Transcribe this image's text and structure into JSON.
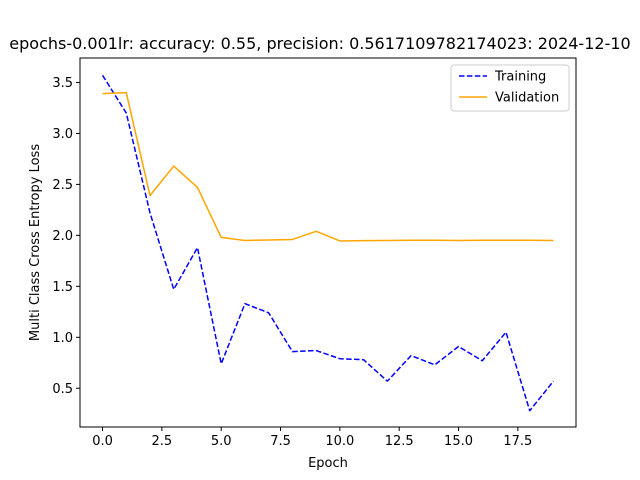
{
  "chart_data": {
    "type": "line",
    "title": "epochs-0.001lr: accuracy: 0.55, precision: 0.5617109782174023: 2024-12-10",
    "xlabel": "Epoch",
    "ylabel": "Multi Class Cross Entropy Loss",
    "xlim": [
      -0.95,
      19.95
    ],
    "ylim": [
      0.12,
      3.74
    ],
    "xticks": [
      0.0,
      2.5,
      5.0,
      7.5,
      10.0,
      12.5,
      15.0,
      17.5
    ],
    "xtick_labels": [
      "0.0",
      "2.5",
      "5.0",
      "7.5",
      "10.0",
      "12.5",
      "15.0",
      "17.5"
    ],
    "yticks": [
      0.5,
      1.0,
      1.5,
      2.0,
      2.5,
      3.0,
      3.5
    ],
    "ytick_labels": [
      "0.5",
      "1.0",
      "1.5",
      "2.0",
      "2.5",
      "3.0",
      "3.5"
    ],
    "grid": false,
    "legend_position": "top-right",
    "x": [
      0,
      1,
      2,
      3,
      4,
      5,
      6,
      7,
      8,
      9,
      10,
      11,
      12,
      13,
      14,
      15,
      16,
      17,
      18,
      19
    ],
    "series": [
      {
        "name": "Training",
        "color": "#0000ff",
        "linestyle": "dashed",
        "values": [
          3.57,
          3.2,
          2.22,
          1.47,
          1.88,
          0.74,
          1.33,
          1.24,
          0.86,
          0.87,
          0.79,
          0.78,
          0.57,
          0.82,
          0.73,
          0.91,
          0.77,
          1.05,
          0.28,
          0.57
        ]
      },
      {
        "name": "Validation",
        "color": "#ffa500",
        "linestyle": "solid",
        "values": [
          3.39,
          3.4,
          2.39,
          2.68,
          2.47,
          1.98,
          1.95,
          1.955,
          1.96,
          2.04,
          1.945,
          1.948,
          1.95,
          1.952,
          1.952,
          1.95,
          1.952,
          1.952,
          1.952,
          1.95
        ]
      }
    ]
  }
}
